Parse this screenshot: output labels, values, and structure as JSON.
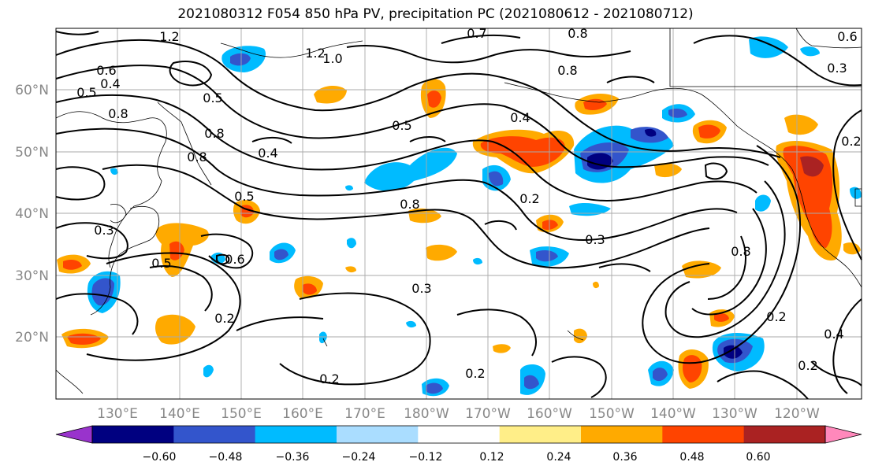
{
  "title": "2021080312 F054 850 hPa PV, precipitation PC (2021080612 - 2021080712)",
  "map": {
    "region": "North Pacific",
    "projection": "cylindrical",
    "lat_labels": [
      "60°N",
      "50°N",
      "40°N",
      "30°N",
      "20°N"
    ],
    "lon_labels": [
      "130°E",
      "140°E",
      "150°E",
      "160°E",
      "170°E",
      "180°W",
      "170°W",
      "160°W",
      "150°W",
      "140°W",
      "130°W",
      "120°W"
    ],
    "gridlines": true,
    "coastlines": true,
    "contour_field": "850 hPa PV",
    "contour_color": "#000000",
    "contour_labels": [
      "1.2",
      "1.2",
      "1.0",
      "0.7",
      "0.8",
      "0.6",
      "0.5",
      "0.4",
      "0.8",
      "0.5",
      "0.8",
      "0.4",
      "0.5",
      "0.8",
      "0.8",
      "0.8",
      "0.4",
      "0.3",
      "0.2",
      "0.5",
      "0.6",
      "0.5",
      "0.3",
      "0.2",
      "0.3",
      "0.2",
      "0.2",
      "0.8",
      "0.2",
      "0.4",
      "0.2",
      "0.2",
      "0.3",
      "0.6"
    ],
    "shaded_field": "precipitation PC"
  },
  "colorbar": {
    "tick_labels": [
      "−0.60",
      "−0.48",
      "−0.36",
      "−0.24",
      "−0.12",
      "0.12",
      "0.24",
      "0.36",
      "0.48",
      "0.60"
    ],
    "colors": [
      "#9933cc",
      "#000080",
      "#3355cc",
      "#00bbff",
      "#aaddff",
      "#ffffff",
      "#ffee88",
      "#ffaa00",
      "#ff4400",
      "#aa2222",
      "#ff88bb"
    ],
    "extend": "both"
  }
}
